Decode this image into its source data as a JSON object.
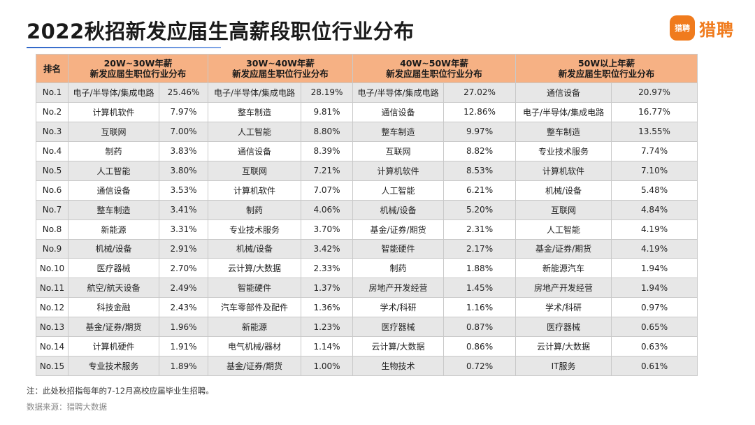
{
  "title": "2022秋招新发应届生高薪段职位行业分布",
  "logo": {
    "badge": "猎聘",
    "text": "猎聘"
  },
  "table": {
    "rank_header": "排名",
    "groups": [
      {
        "line1": "20W~30W年薪",
        "line2": "新发应届生职位行业分布"
      },
      {
        "line1": "30W~40W年薪",
        "line2": "新发应届生职位行业分布"
      },
      {
        "line1": "40W~50W年薪",
        "line2": "新发应届生职位行业分布"
      },
      {
        "line1": "50W以上年薪",
        "line2": "新发应届生职位行业分布"
      }
    ],
    "rows": [
      {
        "rank": "No.1",
        "cells": [
          "电子/半导体/集成电路",
          "25.46%",
          "电子/半导体/集成电路",
          "28.19%",
          "电子/半导体/集成电路",
          "27.02%",
          "通信设备",
          "20.97%"
        ]
      },
      {
        "rank": "No.2",
        "cells": [
          "计算机软件",
          "7.97%",
          "整车制造",
          "9.81%",
          "通信设备",
          "12.86%",
          "电子/半导体/集成电路",
          "16.77%"
        ]
      },
      {
        "rank": "No.3",
        "cells": [
          "互联网",
          "7.00%",
          "人工智能",
          "8.80%",
          "整车制造",
          "9.97%",
          "整车制造",
          "13.55%"
        ]
      },
      {
        "rank": "No.4",
        "cells": [
          "制药",
          "3.83%",
          "通信设备",
          "8.39%",
          "互联网",
          "8.82%",
          "专业技术服务",
          "7.74%"
        ]
      },
      {
        "rank": "No.5",
        "cells": [
          "人工智能",
          "3.80%",
          "互联网",
          "7.21%",
          "计算机软件",
          "8.53%",
          "计算机软件",
          "7.10%"
        ]
      },
      {
        "rank": "No.6",
        "cells": [
          "通信设备",
          "3.53%",
          "计算机软件",
          "7.07%",
          "人工智能",
          "6.21%",
          "机械/设备",
          "5.48%"
        ]
      },
      {
        "rank": "No.7",
        "cells": [
          "整车制造",
          "3.41%",
          "制药",
          "4.06%",
          "机械/设备",
          "5.20%",
          "互联网",
          "4.84%"
        ]
      },
      {
        "rank": "No.8",
        "cells": [
          "新能源",
          "3.31%",
          "专业技术服务",
          "3.70%",
          "基金/证券/期货",
          "2.31%",
          "人工智能",
          "4.19%"
        ]
      },
      {
        "rank": "No.9",
        "cells": [
          "机械/设备",
          "2.91%",
          "机械/设备",
          "3.42%",
          "智能硬件",
          "2.17%",
          "基金/证券/期货",
          "4.19%"
        ]
      },
      {
        "rank": "No.10",
        "cells": [
          "医疗器械",
          "2.70%",
          "云计算/大数据",
          "2.33%",
          "制药",
          "1.88%",
          "新能源汽车",
          "1.94%"
        ]
      },
      {
        "rank": "No.11",
        "cells": [
          "航空/航天设备",
          "2.49%",
          "智能硬件",
          "1.37%",
          "房地产开发经营",
          "1.45%",
          "房地产开发经营",
          "1.94%"
        ]
      },
      {
        "rank": "No.12",
        "cells": [
          "科技金融",
          "2.43%",
          "汽车零部件及配件",
          "1.36%",
          "学术/科研",
          "1.16%",
          "学术/科研",
          "0.97%"
        ]
      },
      {
        "rank": "No.13",
        "cells": [
          "基金/证券/期货",
          "1.96%",
          "新能源",
          "1.23%",
          "医疗器械",
          "0.87%",
          "医疗器械",
          "0.65%"
        ]
      },
      {
        "rank": "No.14",
        "cells": [
          "计算机硬件",
          "1.91%",
          "电气机械/器材",
          "1.14%",
          "云计算/大数据",
          "0.86%",
          "云计算/大数据",
          "0.63%"
        ]
      },
      {
        "rank": "No.15",
        "cells": [
          "专业技术服务",
          "1.89%",
          "基金/证券/期货",
          "1.00%",
          "生物技术",
          "0.72%",
          "IT服务",
          "0.61%"
        ]
      }
    ]
  },
  "note": "注：此处秋招指每年的7-12月高校应届毕业生招聘。",
  "source": "数据来源：猎聘大数据",
  "colors": {
    "header_bg": "#f6b184",
    "stripe": "#e7e7e7",
    "brand_orange": "#f07b1d",
    "title_rule": "#2f66c8"
  }
}
